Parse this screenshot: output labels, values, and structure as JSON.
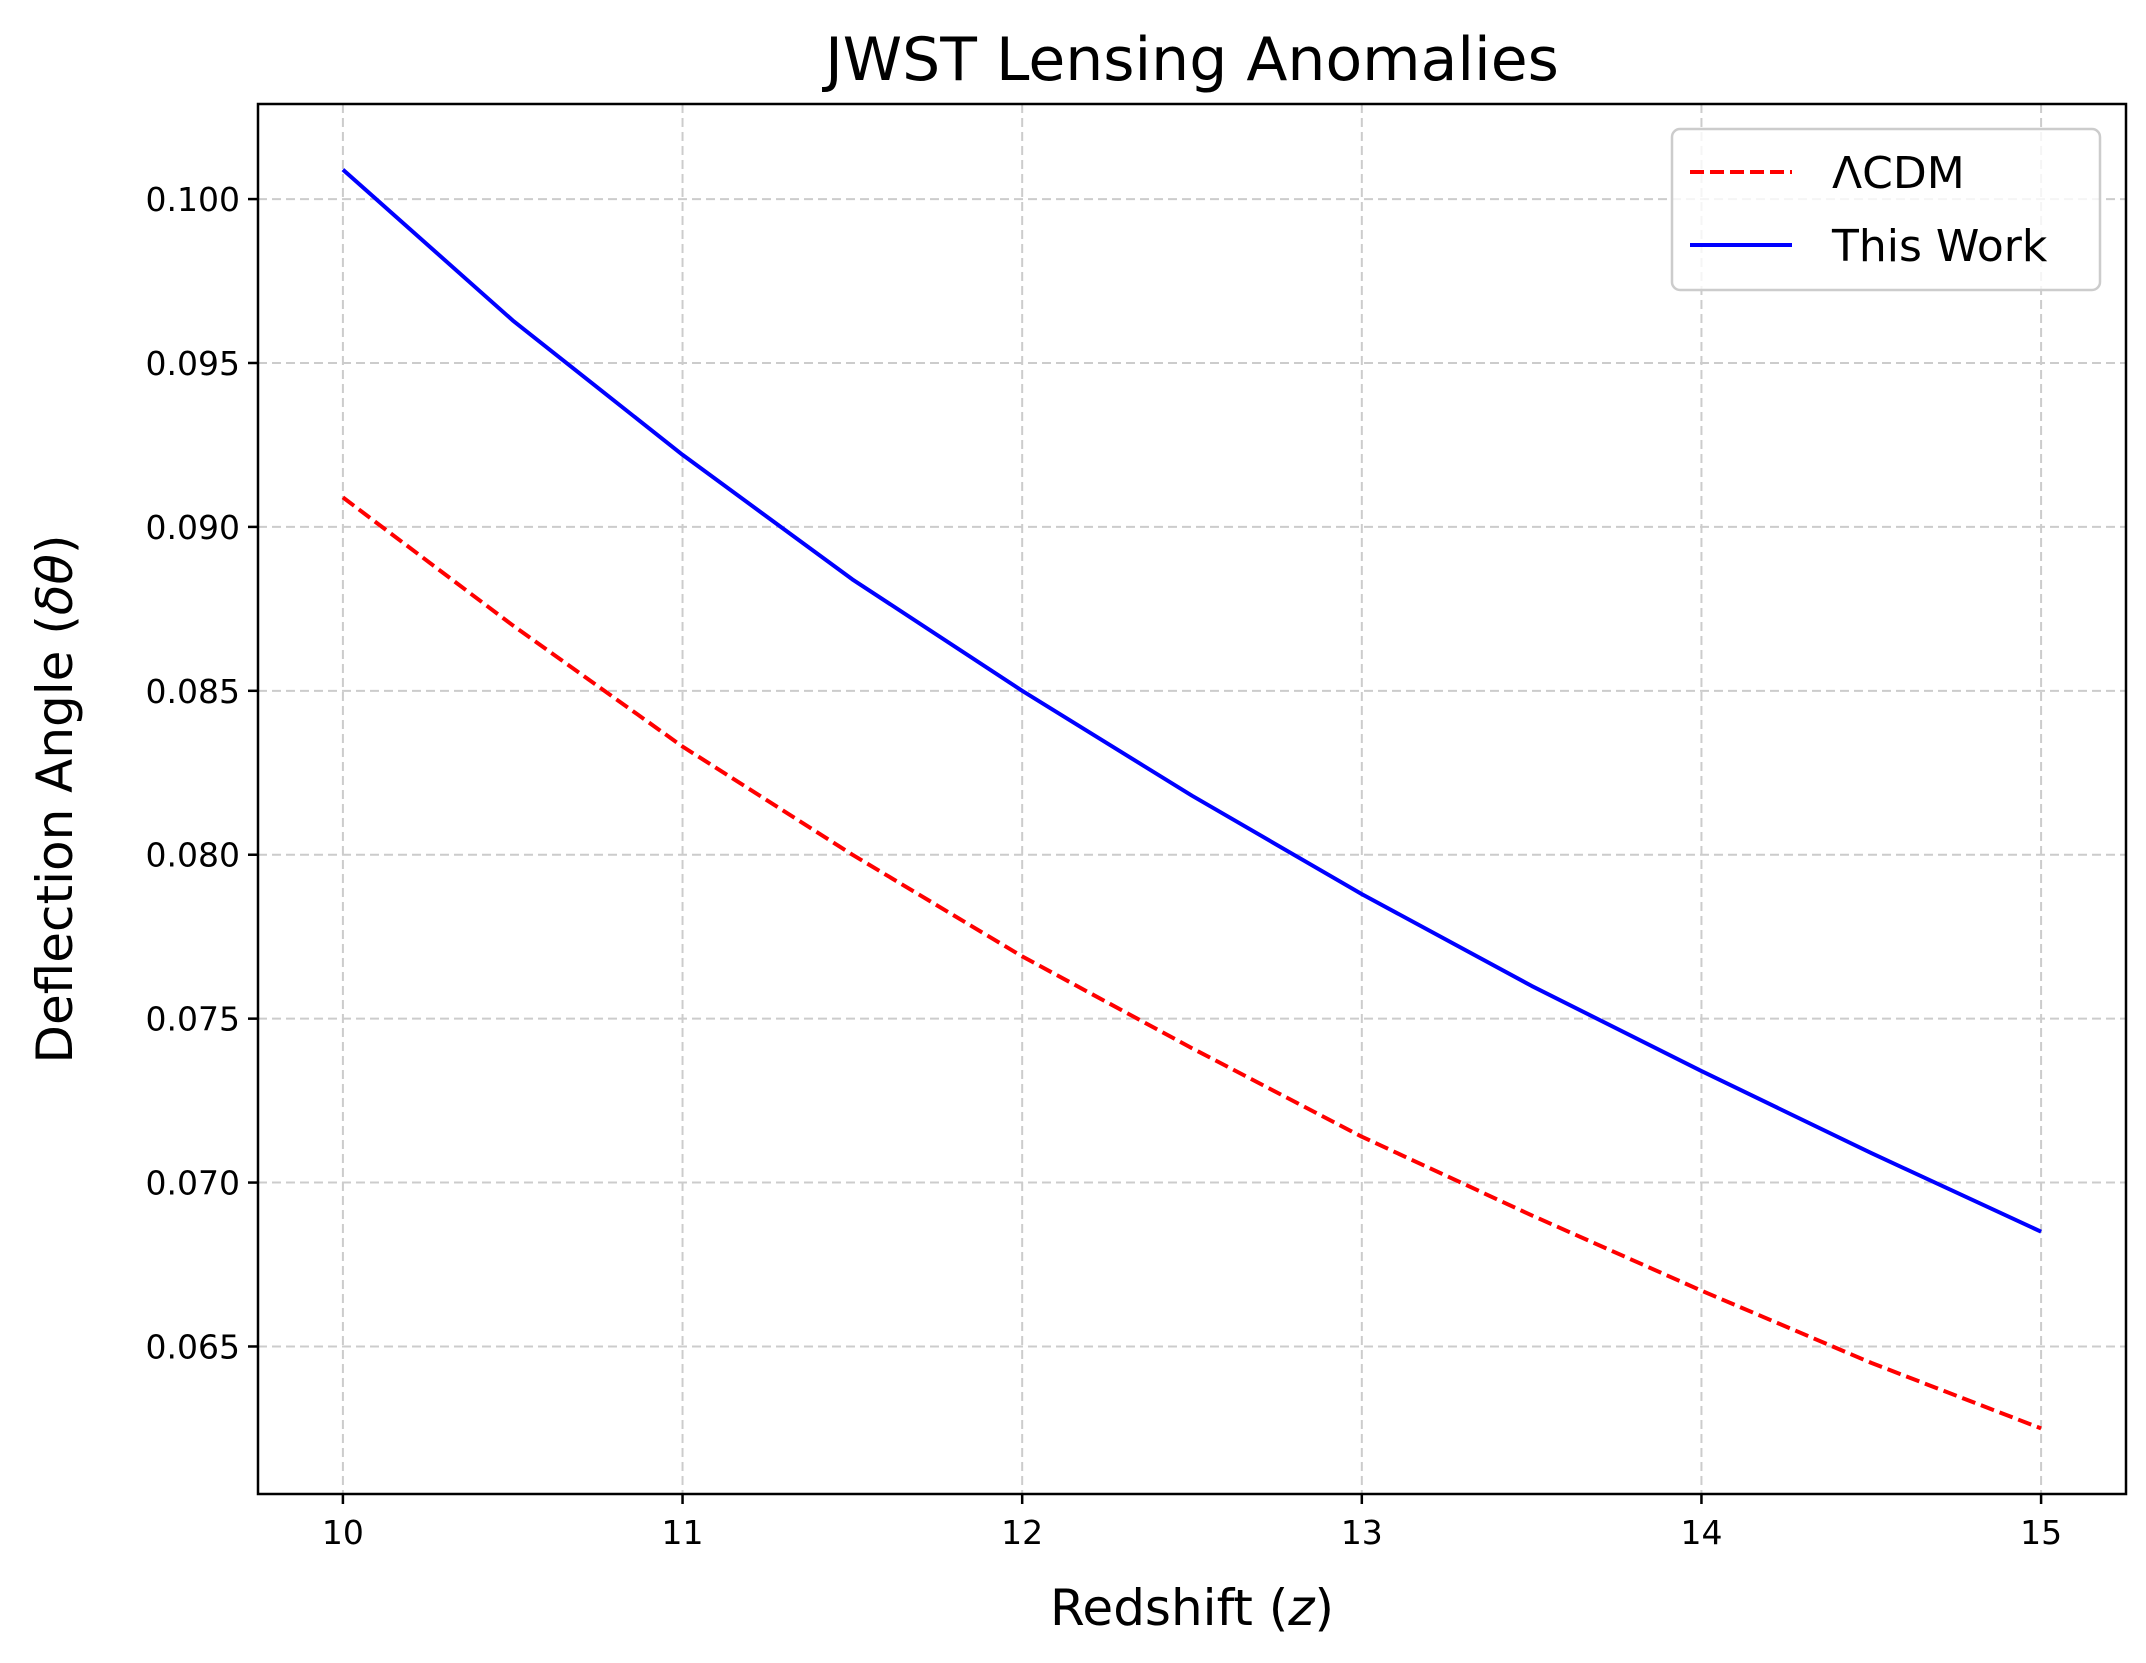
{
  "chart_data": {
    "type": "line",
    "title": "JWST Lensing Anomalies",
    "xlabel": "Redshift (",
    "xlabel_var": "z",
    "xlabel_end": ")",
    "ylabel": "Deflection Angle (",
    "ylabel_var": "δθ",
    "ylabel_end": ")",
    "xlim": [
      9.75,
      15.25
    ],
    "ylim": [
      0.0605,
      0.1029
    ],
    "xticks": [
      10,
      11,
      12,
      13,
      14,
      15
    ],
    "xtick_labels": [
      "10",
      "11",
      "12",
      "13",
      "14",
      "15"
    ],
    "yticks": [
      0.065,
      0.07,
      0.075,
      0.08,
      0.085,
      0.09,
      0.095,
      0.1
    ],
    "ytick_labels": [
      "0.065",
      "0.070",
      "0.075",
      "0.080",
      "0.085",
      "0.090",
      "0.095",
      "0.100"
    ],
    "grid": true,
    "legend_position": "top-right",
    "series": [
      {
        "name": "ΛCDM",
        "color": "#ff0000",
        "style": "dashed",
        "x": [
          10,
          10.5,
          11,
          11.5,
          12,
          12.5,
          13,
          13.5,
          14,
          14.5,
          15
        ],
        "values": [
          0.0909,
          0.087,
          0.0833,
          0.08,
          0.0769,
          0.0741,
          0.0714,
          0.069,
          0.0667,
          0.0645,
          0.0625
        ]
      },
      {
        "name": "This Work",
        "color": "#0000ff",
        "style": "solid",
        "x": [
          10,
          10.5,
          11,
          11.5,
          12,
          12.5,
          13,
          13.5,
          14,
          14.5,
          15
        ],
        "values": [
          0.1009,
          0.0963,
          0.0922,
          0.0884,
          0.085,
          0.0818,
          0.0788,
          0.076,
          0.0734,
          0.0709,
          0.0685
        ]
      }
    ]
  }
}
